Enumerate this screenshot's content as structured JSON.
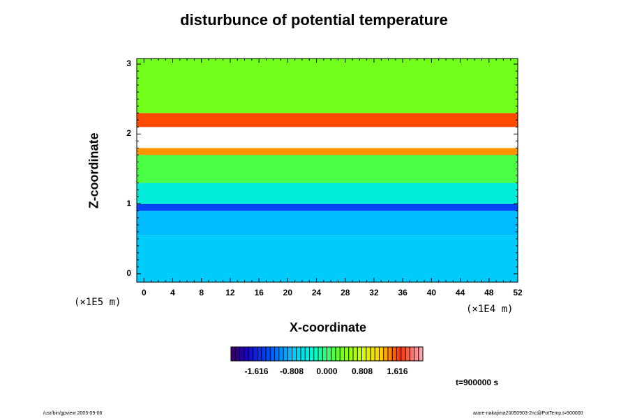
{
  "chart_data": {
    "type": "heatmap",
    "title": "disturbunce of potential temperature",
    "xlabel": "X-coordinate",
    "ylabel": "Z-coordinate",
    "x_unit": "(×1E4 m)",
    "y_unit": "(×1E5 m)",
    "xlim": [
      -1,
      52
    ],
    "ylim": [
      -0.12,
      3.08
    ],
    "x_ticks": [
      "0",
      "4",
      "8",
      "12",
      "16",
      "20",
      "24",
      "28",
      "32",
      "36",
      "40",
      "44",
      "48",
      "52"
    ],
    "y_ticks": [
      "0",
      "1",
      "2",
      "3"
    ],
    "colorbar": {
      "range": [
        -2.2,
        2.2
      ],
      "tick_values": [
        -1.616,
        -0.808,
        0.0,
        0.808,
        1.616
      ],
      "tick_labels": [
        "-1.616",
        "-0.808",
        "0.000",
        "0.808",
        "1.616"
      ]
    },
    "field_bands": [
      {
        "z_from": -0.12,
        "z_to": 0.55,
        "value": -0.75
      },
      {
        "z_from": 0.55,
        "z_to": 0.9,
        "value": -0.85
      },
      {
        "z_from": 0.9,
        "z_to": 1.0,
        "value": -1.4
      },
      {
        "z_from": 1.0,
        "z_to": 1.3,
        "value": -0.45
      },
      {
        "z_from": 1.3,
        "z_to": 1.7,
        "value": 0.15
      },
      {
        "z_from": 1.7,
        "z_to": 1.8,
        "value": 1.4
      },
      {
        "z_from": 1.8,
        "z_to": 2.1,
        "value": null
      },
      {
        "z_from": 2.1,
        "z_to": 2.3,
        "value": 1.6
      },
      {
        "z_from": 2.3,
        "z_to": 3.08,
        "value": 0.35
      }
    ],
    "time": "t=900000 s"
  },
  "footer": {
    "left": "/usr/bin/gpview 2005-09-06",
    "right": "arare-nakajima20050903-2nc@PotTemp,t=900000"
  }
}
